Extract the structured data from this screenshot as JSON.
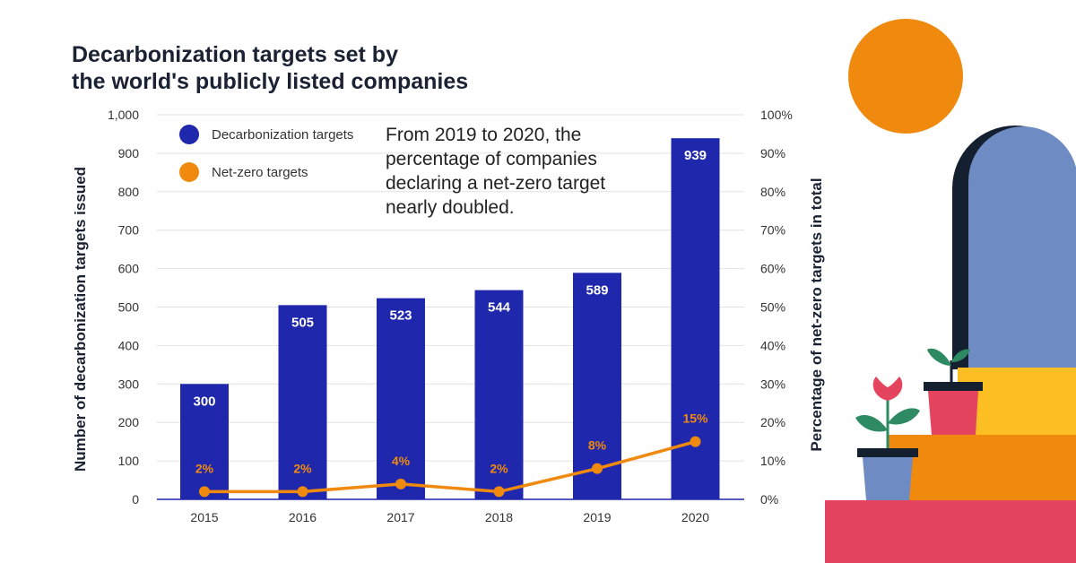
{
  "title": [
    "Decarbonization targets set by",
    "the world's publicly listed companies"
  ],
  "annotation": "From 2019 to 2020, the percentage of companies declaring a net-zero target nearly doubled.",
  "colors": {
    "bars": "#1f27ad",
    "line": "#ef8a0f",
    "title": "#1b2233",
    "sun": "#ef8a0f",
    "arch": "#6f8bc4",
    "arch_shadow": "#14202f",
    "step_top": "#fbbf24",
    "step_mid": "#ef8a0f",
    "step_bottom": "#e5445e",
    "pot_red": "#e5445e",
    "pot_blue": "#6f8bc4",
    "leaf_green": "#2e8a63"
  },
  "chart_data": {
    "type": "bar",
    "categories": [
      "2015",
      "2016",
      "2017",
      "2018",
      "2019",
      "2020"
    ],
    "series": [
      {
        "name": "Decarbonization targets",
        "type": "bar",
        "axis": "left",
        "values": [
          300,
          505,
          523,
          544,
          589,
          939
        ],
        "labels": [
          "300",
          "505",
          "523",
          "544",
          "589",
          "939"
        ]
      },
      {
        "name": "Net-zero targets",
        "type": "line",
        "axis": "right",
        "values": [
          2,
          2,
          4,
          2,
          8,
          15
        ],
        "labels": [
          "2%",
          "2%",
          "4%",
          "2%",
          "8%",
          "15%"
        ]
      }
    ],
    "ylabel": "Number of decarbonization targets issued",
    "y2label": "Percentage of net-zero targets in total",
    "ylim": [
      0,
      1000
    ],
    "y2lim": [
      0,
      100
    ],
    "yticks": [
      "0",
      "100",
      "200",
      "300",
      "400",
      "500",
      "600",
      "700",
      "800",
      "900",
      "1,000"
    ],
    "y2ticks": [
      "0%",
      "10%",
      "20%",
      "30%",
      "40%",
      "50%",
      "60%",
      "70%",
      "80%",
      "90%",
      "100%"
    ],
    "grid": true,
    "legend": "top-left"
  }
}
